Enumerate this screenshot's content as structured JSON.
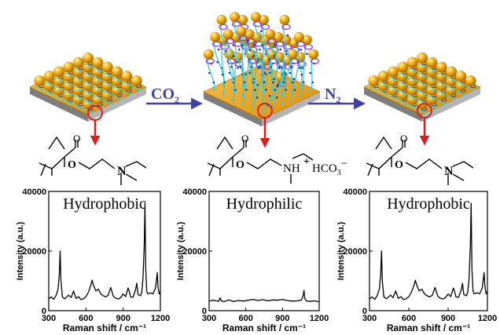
{
  "arrows": {
    "co2": {
      "main": "CO",
      "sub": "2"
    },
    "n2": {
      "main": "N",
      "sub": "2"
    }
  },
  "colors": {
    "surface_gold": "#e8a316",
    "base_gray": "#9a9a9a",
    "sphere_gold": "#f2b21a",
    "chain_cyan": "#3cc9d6",
    "coil_purple": "#8a2be2",
    "process_arrow": "#3f3fa6",
    "red_arrow": "#d62020",
    "spectrum_line": "#000000"
  },
  "molecules": {
    "left": {
      "amine_label": "N"
    },
    "middle": {
      "amine_label": "NH",
      "charge": "+",
      "counterion": "HCO",
      "counterion_sub": "3",
      "counterion_charge": "−"
    },
    "right": {
      "amine_label": "N"
    }
  },
  "chart_data": [
    {
      "type": "line",
      "title": "Hydrophobic",
      "xlabel": "Raman shift / cm⁻¹",
      "ylabel": "Intensity (a.u.)",
      "xlim": [
        300,
        1200
      ],
      "ylim": [
        0,
        40000
      ],
      "xticks": [
        "300",
        "600",
        "900",
        "1200"
      ],
      "yticks": [
        "0",
        "20000",
        "40000"
      ],
      "series": [
        {
          "x": [
            300,
            320,
            340,
            360,
            375,
            385,
            392,
            398,
            410,
            430,
            460,
            480,
            500,
            520,
            540,
            560,
            580,
            600,
            620,
            640,
            650,
            660,
            680,
            700,
            720,
            740,
            760,
            780,
            800,
            820,
            830,
            840,
            860,
            880,
            900,
            920,
            940,
            950,
            960,
            980,
            1000,
            1010,
            1020,
            1030,
            1040,
            1050,
            1060,
            1070,
            1076,
            1082,
            1090,
            1100,
            1120,
            1140,
            1160,
            1170,
            1175,
            1180,
            1190,
            1200
          ],
          "y": [
            4000,
            4600,
            3800,
            5200,
            7200,
            12000,
            20000,
            10000,
            4600,
            4000,
            5200,
            4400,
            6600,
            4100,
            4700,
            3700,
            4000,
            4700,
            6200,
            8600,
            10200,
            8600,
            6600,
            7200,
            5600,
            5000,
            4600,
            5200,
            7800,
            5000,
            4500,
            4200,
            3900,
            4400,
            5600,
            4700,
            7600,
            6400,
            4600,
            4500,
            7000,
            9200,
            5400,
            5200,
            5000,
            6200,
            11000,
            22000,
            36000,
            14000,
            6600,
            5600,
            6000,
            5600,
            7500,
            11000,
            12800,
            8400,
            5600,
            6400
          ]
        }
      ]
    },
    {
      "type": "line",
      "title": "Hydrophilic",
      "xlabel": "Raman shift / cm⁻¹",
      "ylabel": "Intensity (a.u.)",
      "xlim": [
        300,
        1200
      ],
      "ylim": [
        0,
        40000
      ],
      "xticks": [
        "300",
        "600",
        "900",
        "1200"
      ],
      "yticks": [
        "0",
        "20000",
        "40000"
      ],
      "series": [
        {
          "x": [
            300,
            330,
            360,
            380,
            390,
            400,
            420,
            460,
            500,
            540,
            580,
            620,
            660,
            700,
            740,
            780,
            820,
            860,
            900,
            940,
            980,
            1020,
            1050,
            1060,
            1070,
            1076,
            1082,
            1095,
            1120,
            1160,
            1200
          ],
          "y": [
            3200,
            3500,
            3300,
            3200,
            4300,
            3300,
            3000,
            3600,
            3100,
            3400,
            3200,
            3500,
            3800,
            3400,
            3700,
            3300,
            3600,
            3500,
            3800,
            3400,
            3200,
            3300,
            3500,
            4000,
            5200,
            6800,
            4200,
            3300,
            3100,
            3300,
            3000
          ]
        }
      ]
    },
    {
      "type": "line",
      "title": "Hydrophobic",
      "xlabel": "Raman shift / cm⁻¹",
      "ylabel": "Intensity (a.u.)",
      "xlim": [
        300,
        1200
      ],
      "ylim": [
        0,
        40000
      ],
      "xticks": [
        "300",
        "600",
        "900",
        "1200"
      ],
      "yticks": [
        "0",
        "20000",
        "40000"
      ],
      "series": [
        {
          "x": [
            300,
            320,
            340,
            360,
            375,
            385,
            392,
            398,
            410,
            430,
            460,
            480,
            500,
            520,
            540,
            560,
            580,
            600,
            620,
            640,
            650,
            660,
            680,
            700,
            720,
            740,
            760,
            780,
            800,
            820,
            830,
            840,
            860,
            880,
            900,
            920,
            940,
            950,
            960,
            980,
            1000,
            1010,
            1020,
            1030,
            1040,
            1050,
            1060,
            1070,
            1076,
            1082,
            1090,
            1100,
            1120,
            1140,
            1160,
            1170,
            1175,
            1180,
            1190,
            1200
          ],
          "y": [
            4000,
            4600,
            3800,
            5200,
            7200,
            12000,
            20000,
            10000,
            4600,
            4000,
            5200,
            4400,
            6600,
            4100,
            4700,
            3700,
            4000,
            4700,
            6200,
            8600,
            10200,
            8600,
            6600,
            7200,
            5600,
            5000,
            4600,
            5200,
            7800,
            5000,
            4500,
            4200,
            3900,
            4400,
            5600,
            4700,
            7600,
            6400,
            4600,
            4500,
            7000,
            9200,
            5400,
            5200,
            5000,
            6200,
            11000,
            22000,
            36000,
            14000,
            6600,
            5600,
            6000,
            5600,
            7500,
            11000,
            12800,
            8400,
            5600,
            6400
          ]
        }
      ]
    }
  ]
}
